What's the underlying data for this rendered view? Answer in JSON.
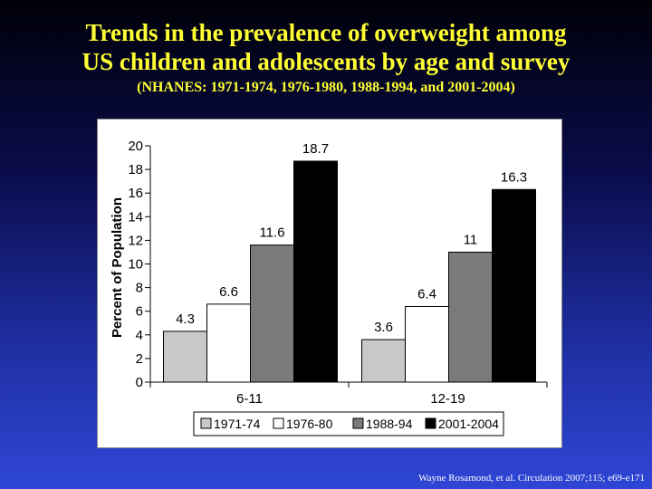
{
  "slide": {
    "title_line1": "Trends in the prevalence of overweight among",
    "title_line2": "US children and adolescents by age and survey",
    "subtitle": "(NHANES: 1971-1974, 1976-1980, 1988-1994, and 2001-2004)",
    "citation": "Wayne Rosamond, et al. Circulation  2007;115; e69-e171"
  },
  "chart_data": {
    "type": "bar",
    "categories": [
      "6-11",
      "12-19"
    ],
    "series": [
      {
        "name": "1971-74",
        "color": "#c8c8c8",
        "values": [
          4.3,
          3.6
        ],
        "labels": [
          "4.3",
          "3.6"
        ]
      },
      {
        "name": "1976-80",
        "color": "#ffffff",
        "values": [
          6.6,
          6.4
        ],
        "labels": [
          "6.6",
          "6.4"
        ]
      },
      {
        "name": "1988-94",
        "color": "#7a7a7a",
        "values": [
          11.6,
          11
        ],
        "labels": [
          "11.6",
          "11"
        ]
      },
      {
        "name": "2001-2004",
        "color": "#000000",
        "values": [
          18.7,
          16.3
        ],
        "labels": [
          "18.7",
          "16.3"
        ]
      }
    ],
    "ylabel": "Percent of Population",
    "xlabel": "",
    "ylim": [
      0,
      20
    ],
    "yticks": [
      "0",
      "2",
      "4",
      "6",
      "8",
      "10",
      "12",
      "14",
      "16",
      "18",
      "20"
    ],
    "grid": false,
    "legend_position": "bottom"
  }
}
